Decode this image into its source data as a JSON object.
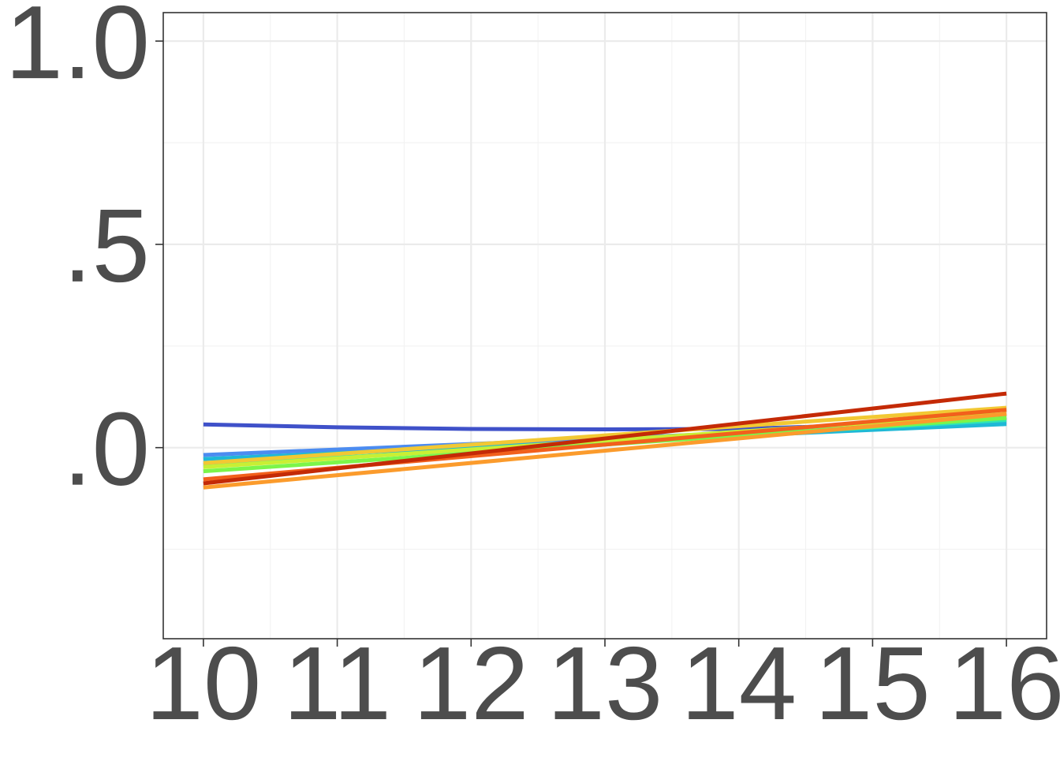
{
  "chart_data": {
    "type": "line",
    "title": "",
    "xlabel": "",
    "ylabel": "",
    "x": [
      10,
      16
    ],
    "xlim": [
      9.7,
      16.3
    ],
    "ylim": [
      -0.47,
      1.07
    ],
    "x_ticks": [
      10,
      11,
      12,
      13,
      14,
      15,
      16
    ],
    "x_tick_labels": [
      "10",
      "11",
      "12",
      "13",
      "14",
      "15",
      "16"
    ],
    "y_ticks": [
      0.0,
      0.5,
      1.0
    ],
    "y_tick_labels": [
      ".0",
      ".5",
      "1.0"
    ],
    "grid": true,
    "legend": "none",
    "series": [
      {
        "color": "#3f51c9",
        "points": [
          [
            10,
            0.057
          ],
          [
            11,
            0.05
          ],
          [
            12,
            0.046
          ],
          [
            13,
            0.045
          ],
          [
            14,
            0.046
          ],
          [
            15,
            0.056
          ],
          [
            16,
            0.073
          ]
        ]
      },
      {
        "color": "#4c8cf0",
        "points": [
          [
            10,
            -0.018
          ],
          [
            16,
            0.063
          ]
        ]
      },
      {
        "color": "#1fb8d6",
        "points": [
          [
            10,
            -0.028
          ],
          [
            16,
            0.058
          ]
        ]
      },
      {
        "color": "#2ee6b4",
        "points": [
          [
            10,
            -0.043
          ],
          [
            16,
            0.068
          ]
        ]
      },
      {
        "color": "#7cf54a",
        "points": [
          [
            10,
            -0.058
          ],
          [
            16,
            0.073
          ]
        ]
      },
      {
        "color": "#c9ef34",
        "points": [
          [
            10,
            -0.048
          ],
          [
            16,
            0.083
          ]
        ]
      },
      {
        "color": "#f2c833",
        "points": [
          [
            10,
            -0.038
          ],
          [
            16,
            0.098
          ]
        ]
      },
      {
        "color": "#fb9b2c",
        "points": [
          [
            10,
            -0.098
          ],
          [
            16,
            0.083
          ]
        ]
      },
      {
        "color": "#f2601c",
        "points": [
          [
            10,
            -0.078
          ],
          [
            16,
            0.093
          ]
        ]
      },
      {
        "color": "#c42a06",
        "points": [
          [
            10,
            -0.088
          ],
          [
            16,
            0.133
          ]
        ]
      }
    ]
  }
}
